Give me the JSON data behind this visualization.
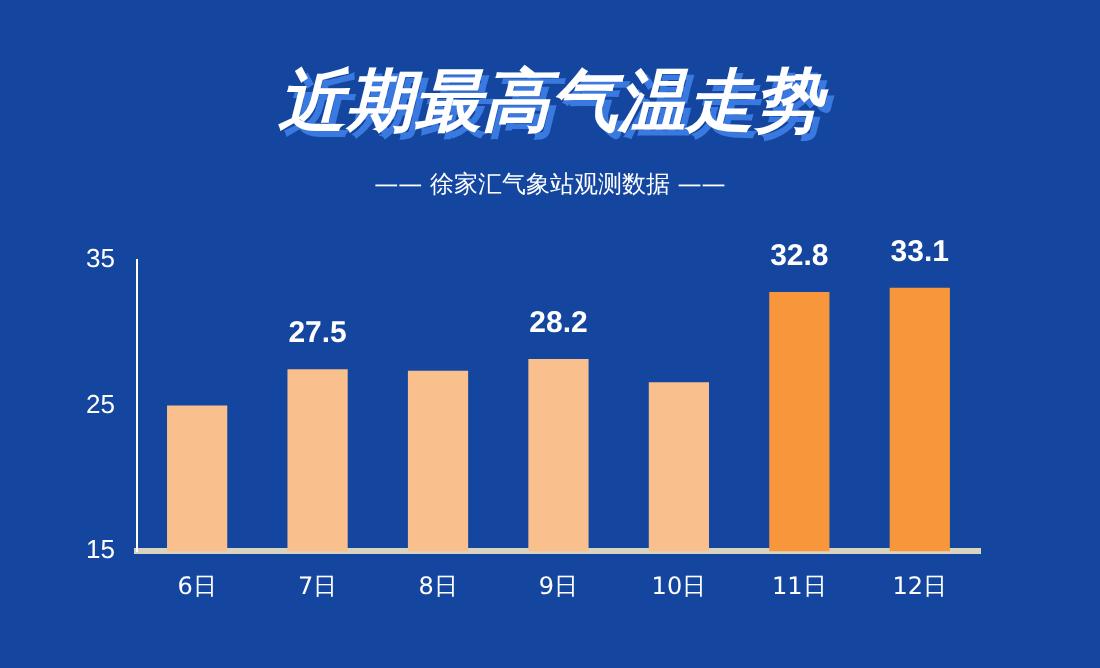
{
  "chart_data": {
    "type": "bar",
    "title": "近期最高气温走势",
    "subtitle": "—— 徐家汇气象站观测数据 ——",
    "categories": [
      "6日",
      "7日",
      "8日",
      "9日",
      "10日",
      "11日",
      "12日"
    ],
    "values": [
      25.0,
      27.5,
      27.4,
      28.2,
      26.6,
      32.8,
      33.1
    ],
    "colors": [
      "#f9c08e",
      "#f9c08e",
      "#f9c08e",
      "#f9c08e",
      "#f9c08e",
      "#f7963a",
      "#f7963a"
    ],
    "value_labels": [
      null,
      "27.5",
      null,
      "28.2",
      null,
      "32.8",
      "33.1"
    ],
    "ylim": [
      15,
      35
    ],
    "yticks": [
      15,
      25,
      35
    ],
    "grid": false,
    "legend": false
  }
}
